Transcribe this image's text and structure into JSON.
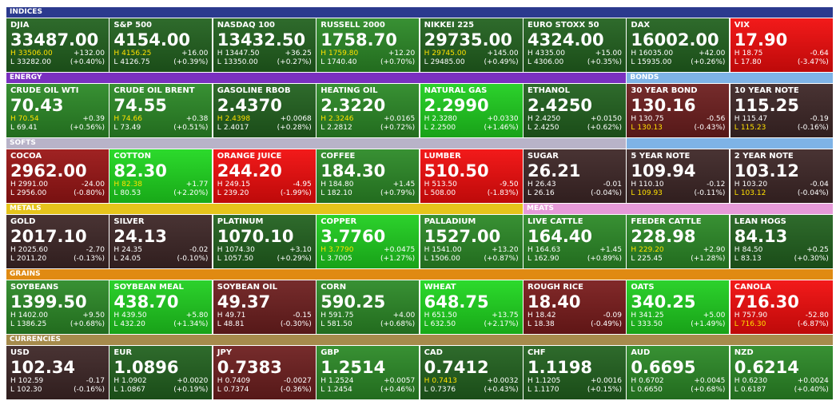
{
  "labels": {
    "high": "H",
    "low": "L"
  },
  "rows": [
    {
      "groups": [
        {
          "title": "INDICES",
          "color": "#2b3a8e",
          "tiles": [
            {
              "name": "DJIA",
              "price": "33487.00",
              "high": "33506.00",
              "change": "+132.00",
              "low": "33282.00",
              "pct": "(+0.40%)",
              "color": "#22621f",
              "high_color": "#ffe100"
            },
            {
              "name": "S&P 500",
              "price": "4154.00",
              "high": "4156.25",
              "change": "+16.00",
              "low": "4126.75",
              "pct": "(+0.39%)",
              "color": "#22621f",
              "high_color": "#ffe100"
            },
            {
              "name": "NASDAQ 100",
              "price": "13432.50",
              "high": "13447.50",
              "change": "+36.25",
              "low": "13350.00",
              "pct": "(+0.27%)",
              "color": "#22621f"
            },
            {
              "name": "RUSSELL 2000",
              "price": "1758.70",
              "high": "1759.80",
              "change": "+12.20",
              "low": "1740.40",
              "pct": "(+0.70%)",
              "color": "#2c8a27",
              "high_color": "#ffe100"
            },
            {
              "name": "NIKKEI 225",
              "price": "29735.00",
              "high": "29745.00",
              "change": "+145.00",
              "low": "29485.00",
              "pct": "(+0.49%)",
              "color": "#22621f",
              "high_color": "#ffe100"
            },
            {
              "name": "EURO STOXX 50",
              "price": "4324.00",
              "high": "4335.00",
              "change": "+15.00",
              "low": "4306.00",
              "pct": "(+0.35%)",
              "color": "#22621f"
            },
            {
              "name": "DAX",
              "price": "16002.00",
              "high": "16035.00",
              "change": "+42.00",
              "low": "15935.00",
              "pct": "(+0.26%)",
              "color": "#22621f"
            },
            {
              "name": "VIX",
              "price": "17.90",
              "high": "18.75",
              "change": "-0.64",
              "low": "17.80",
              "pct": "(-3.47%)",
              "color": "#f20c0c"
            }
          ]
        }
      ]
    },
    {
      "groups": [
        {
          "title": "ENERGY",
          "color": "#7a30c0",
          "tiles": [
            {
              "name": "CRUDE OIL WTI",
              "price": "70.43",
              "high": "70.54",
              "change": "+0.39",
              "low": "69.41",
              "pct": "(+0.56%)",
              "color": "#2c8a27",
              "high_color": "#ffe100"
            },
            {
              "name": "CRUDE OIL BRENT",
              "price": "74.55",
              "high": "74.66",
              "change": "+0.38",
              "low": "73.49",
              "pct": "(+0.51%)",
              "color": "#2c8a27",
              "high_color": "#ffe100"
            },
            {
              "name": "GASOLINE RBOB",
              "price": "2.4370",
              "high": "2.4398",
              "change": "+0.0068",
              "low": "2.4017",
              "pct": "(+0.28%)",
              "color": "#22621f",
              "high_color": "#ffe100"
            },
            {
              "name": "HEATING OIL",
              "price": "2.3220",
              "high": "2.3246",
              "change": "+0.0165",
              "low": "2.2812",
              "pct": "(+0.72%)",
              "color": "#2c8a27",
              "high_color": "#ffe100"
            },
            {
              "name": "NATURAL GAS",
              "price": "2.2990",
              "high": "2.3280",
              "change": "+0.0330",
              "low": "2.2500",
              "pct": "(+1.46%)",
              "color": "#1fcf1f"
            },
            {
              "name": "ETHANOL",
              "price": "2.4250",
              "high": "2.4250",
              "change": "+0.0150",
              "low": "2.4250",
              "pct": "(+0.62%)",
              "color": "#22621f"
            }
          ]
        },
        {
          "title": "BONDS",
          "color": "#7eb3e6",
          "tiles": [
            {
              "name": "30 YEAR BOND",
              "price": "130.16",
              "high": "130.75",
              "change": "-0.56",
              "low": "130.13",
              "pct": "(-0.43%)",
              "color": "#6e1f1f",
              "low_color": "#ffe100"
            },
            {
              "name": "10 YEAR NOTE",
              "price": "115.25",
              "high": "115.47",
              "change": "-0.19",
              "low": "115.23",
              "pct": "(-0.16%)",
              "color": "#3e2727",
              "low_color": "#ffe100"
            }
          ]
        }
      ]
    },
    {
      "groups": [
        {
          "title": "SOFTS",
          "color": "#b8b3c8",
          "tiles": [
            {
              "name": "COCOA",
              "price": "2962.00",
              "high": "2991.00",
              "change": "-24.00",
              "low": "2956.00",
              "pct": "(-0.80%)",
              "color": "#9a1515"
            },
            {
              "name": "COTTON",
              "price": "82.30",
              "high": "82.38",
              "change": "+1.77",
              "low": "80.53",
              "pct": "(+2.20%)",
              "color": "#1fd81f",
              "high_color": "#ffe100"
            },
            {
              "name": "ORANGE JUICE",
              "price": "244.20",
              "high": "249.15",
              "change": "-4.95",
              "low": "239.20",
              "pct": "(-1.99%)",
              "color": "#f20c0c"
            },
            {
              "name": "COFFEE",
              "price": "184.30",
              "high": "184.80",
              "change": "+1.45",
              "low": "182.10",
              "pct": "(+0.79%)",
              "color": "#2c8a27"
            },
            {
              "name": "LUMBER",
              "price": "510.50",
              "high": "513.50",
              "change": "-9.50",
              "low": "508.00",
              "pct": "(-1.83%)",
              "color": "#f20c0c"
            },
            {
              "name": "SUGAR",
              "price": "26.21",
              "high": "26.43",
              "change": "-0.01",
              "low": "26.16",
              "pct": "(-0.04%)",
              "color": "#3e2727"
            }
          ]
        },
        {
          "color": "#7eb3e6",
          "tiles": [
            {
              "name": "5 YEAR NOTE",
              "price": "109.94",
              "high": "110.10",
              "change": "-0.12",
              "low": "109.93",
              "pct": "(-0.11%)",
              "color": "#3e2727",
              "low_color": "#ffe100"
            },
            {
              "name": "2 YEAR NOTE",
              "price": "103.12",
              "high": "103.20",
              "change": "-0.04",
              "low": "103.12",
              "pct": "(-0.04%)",
              "color": "#3e2727",
              "low_color": "#ffe100"
            }
          ]
        }
      ]
    },
    {
      "groups": [
        {
          "title": "METALS",
          "color": "#e6c41b",
          "tiles": [
            {
              "name": "GOLD",
              "price": "2017.10",
              "high": "2025.60",
              "change": "-2.70",
              "low": "2011.20",
              "pct": "(-0.13%)",
              "color": "#3e2727"
            },
            {
              "name": "SILVER",
              "price": "24.13",
              "high": "24.35",
              "change": "-0.02",
              "low": "24.05",
              "pct": "(-0.10%)",
              "color": "#3e2727"
            },
            {
              "name": "PLATINUM",
              "price": "1070.10",
              "high": "1074.30",
              "change": "+3.10",
              "low": "1057.50",
              "pct": "(+0.29%)",
              "color": "#22621f"
            },
            {
              "name": "COPPER",
              "price": "3.7760",
              "high": "3.7790",
              "change": "+0.0475",
              "low": "3.7005",
              "pct": "(+1.27%)",
              "color": "#1fcf1f",
              "high_color": "#ffe100"
            },
            {
              "name": "PALLADIUM",
              "price": "1527.00",
              "high": "1541.00",
              "change": "+13.20",
              "low": "1506.00",
              "pct": "(+0.87%)",
              "color": "#2c8a27"
            }
          ]
        },
        {
          "title": "MEATS",
          "color": "#e69ad8",
          "tiles": [
            {
              "name": "LIVE CATTLE",
              "price": "164.40",
              "high": "164.63",
              "change": "+1.45",
              "low": "162.90",
              "pct": "(+0.89%)",
              "color": "#2c8a27"
            },
            {
              "name": "FEEDER CATTLE",
              "price": "228.98",
              "high": "229.20",
              "change": "+2.90",
              "low": "225.45",
              "pct": "(+1.28%)",
              "color": "#2c8a27",
              "high_color": "#ffe100"
            },
            {
              "name": "LEAN HOGS",
              "price": "84.13",
              "high": "84.50",
              "change": "+0.25",
              "low": "83.13",
              "pct": "(+0.30%)",
              "color": "#22621f"
            }
          ]
        }
      ]
    },
    {
      "groups": [
        {
          "title": "GRAINS",
          "color": "#e08a12",
          "tiles": [
            {
              "name": "SOYBEANS",
              "price": "1399.50",
              "high": "1402.00",
              "change": "+9.50",
              "low": "1386.25",
              "pct": "(+0.68%)",
              "color": "#2c8a27"
            },
            {
              "name": "SOYBEAN MEAL",
              "price": "438.70",
              "high": "439.50",
              "change": "+5.80",
              "low": "432.20",
              "pct": "(+1.34%)",
              "color": "#1fcf1f"
            },
            {
              "name": "SOYBEAN OIL",
              "price": "49.37",
              "high": "49.71",
              "change": "-0.15",
              "low": "48.81",
              "pct": "(-0.30%)",
              "color": "#6e1f1f"
            },
            {
              "name": "CORN",
              "price": "590.25",
              "high": "591.75",
              "change": "+4.00",
              "low": "581.50",
              "pct": "(+0.68%)",
              "color": "#2c8a27"
            },
            {
              "name": "WHEAT",
              "price": "648.75",
              "high": "651.50",
              "change": "+13.75",
              "low": "632.50",
              "pct": "(+2.17%)",
              "color": "#1fd81f"
            },
            {
              "name": "ROUGH RICE",
              "price": "18.40",
              "high": "18.42",
              "change": "-0.09",
              "low": "18.38",
              "pct": "(-0.49%)",
              "color": "#7a1c1c"
            },
            {
              "name": "OATS",
              "price": "340.25",
              "high": "341.25",
              "change": "+5.00",
              "low": "333.50",
              "pct": "(+1.49%)",
              "color": "#1fcf1f"
            },
            {
              "name": "CANOLA",
              "price": "716.30",
              "high": "757.90",
              "change": "-52.80",
              "low": "716.30",
              "pct": "(-6.87%)",
              "color": "#f20c0c",
              "low_color": "#ffe100"
            }
          ]
        }
      ]
    },
    {
      "groups": [
        {
          "title": "CURRENCIES",
          "color": "#a68b4c",
          "tiles": [
            {
              "name": "USD",
              "price": "102.34",
              "high": "102.59",
              "change": "-0.17",
              "low": "102.30",
              "pct": "(-0.16%)",
              "color": "#3e2727"
            },
            {
              "name": "EUR",
              "price": "1.0896",
              "high": "1.0902",
              "change": "+0.0020",
              "low": "1.0867",
              "pct": "(+0.19%)",
              "color": "#22621f"
            },
            {
              "name": "JPY",
              "price": "0.7383",
              "high": "0.7409",
              "change": "-0.0027",
              "low": "0.7374",
              "pct": "(-0.36%)",
              "color": "#6e1f1f"
            },
            {
              "name": "GBP",
              "price": "1.2514",
              "high": "1.2524",
              "change": "+0.0057",
              "low": "1.2454",
              "pct": "(+0.46%)",
              "color": "#2c8a27"
            },
            {
              "name": "CAD",
              "price": "0.7412",
              "high": "0.7413",
              "change": "+0.0032",
              "low": "0.7376",
              "pct": "(+0.43%)",
              "color": "#22621f",
              "high_color": "#ffe100"
            },
            {
              "name": "CHF",
              "price": "1.1198",
              "high": "1.1205",
              "change": "+0.0016",
              "low": "1.1170",
              "pct": "(+0.15%)",
              "color": "#22621f"
            },
            {
              "name": "AUD",
              "price": "0.6695",
              "high": "0.6702",
              "change": "+0.0045",
              "low": "0.6650",
              "pct": "(+0.68%)",
              "color": "#2c8a27"
            },
            {
              "name": "NZD",
              "price": "0.6214",
              "high": "0.6230",
              "change": "+0.0024",
              "low": "0.6187",
              "pct": "(+0.40%)",
              "color": "#2c8a27"
            }
          ]
        }
      ]
    }
  ]
}
